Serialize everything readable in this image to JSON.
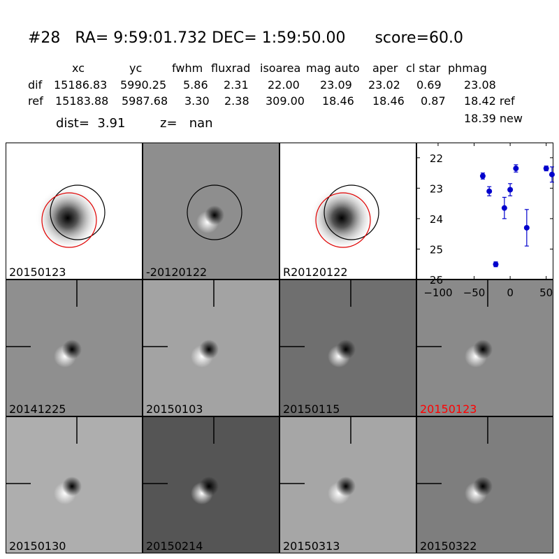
{
  "header": {
    "title": "#28   RA= 9:59:01.732 DEC= 1:59:50.00      score=60.0",
    "col_xc": "xc",
    "col_yc": "yc",
    "col_fwhm": "fwhm",
    "col_fluxrad": "fluxrad",
    "col_isoarea": "isoarea",
    "col_magauto": "mag auto",
    "col_aper": "aper",
    "col_clstar": "cl star",
    "col_phmag": "phmag",
    "dif_label": "dif",
    "dif_xc": "15186.83",
    "dif_yc": "5990.25",
    "dif_fwhm": "5.86",
    "dif_fluxrad": "2.31",
    "dif_isoarea": "22.00",
    "dif_magauto": "23.09",
    "dif_aper": "23.02",
    "dif_clstar": "0.69",
    "dif_phmag": "23.08",
    "ref_label": "ref",
    "ref_xc": "15183.88",
    "ref_yc": "5987.68",
    "ref_fwhm": "3.30",
    "ref_fluxrad": "2.38",
    "ref_isoarea": "309.00",
    "ref_magauto": "18.46",
    "ref_aper": "18.46",
    "ref_clstar": "0.87",
    "ref_phmag": "18.42 ref",
    "new_phmag": "18.39 new",
    "dist_text": "dist=  3.91",
    "z_text": "z=   nan"
  },
  "panels": [
    {
      "label": "20150123",
      "label_color": "#000000",
      "kind": "star"
    },
    {
      "label": "-20120122",
      "label_color": "#000000",
      "kind": "diff"
    },
    {
      "label": "R20120122",
      "label_color": "#000000",
      "kind": "star"
    },
    {
      "label": "20141225",
      "label_color": "#000000"
    },
    {
      "label": "20150103",
      "label_color": "#000000"
    },
    {
      "label": "20150115",
      "label_color": "#000000"
    },
    {
      "label": "20150123",
      "label_color": "#ff0000"
    },
    {
      "label": "20150130",
      "label_color": "#000000"
    },
    {
      "label": "20150214",
      "label_color": "#000000"
    },
    {
      "label": "20150313",
      "label_color": "#000000"
    },
    {
      "label": "20150322",
      "label_color": "#000000"
    }
  ],
  "chart_data": {
    "type": "scatter",
    "title": "",
    "xlabel": "",
    "ylabel": "",
    "xlim": [
      -130,
      60
    ],
    "ylim": [
      26,
      21.5
    ],
    "y_inverted": true,
    "xticks": [
      -100,
      -50,
      0,
      50
    ],
    "yticks": [
      22,
      23,
      24,
      25,
      26
    ],
    "marker_color": "#0000cc",
    "points": [
      {
        "x": -38,
        "y": 22.6,
        "err": 0.1
      },
      {
        "x": -29,
        "y": 23.1,
        "err": 0.15
      },
      {
        "x": -20,
        "y": 25.5,
        "err": 0.08
      },
      {
        "x": -8,
        "y": 23.65,
        "err": 0.35
      },
      {
        "x": 0,
        "y": 23.05,
        "err": 0.2
      },
      {
        "x": 8,
        "y": 22.35,
        "err": 0.12
      },
      {
        "x": 23,
        "y": 24.3,
        "err": 0.6
      },
      {
        "x": 50,
        "y": 22.35,
        "err": 0.08
      },
      {
        "x": 58,
        "y": 22.55,
        "err": 0.25
      }
    ]
  }
}
